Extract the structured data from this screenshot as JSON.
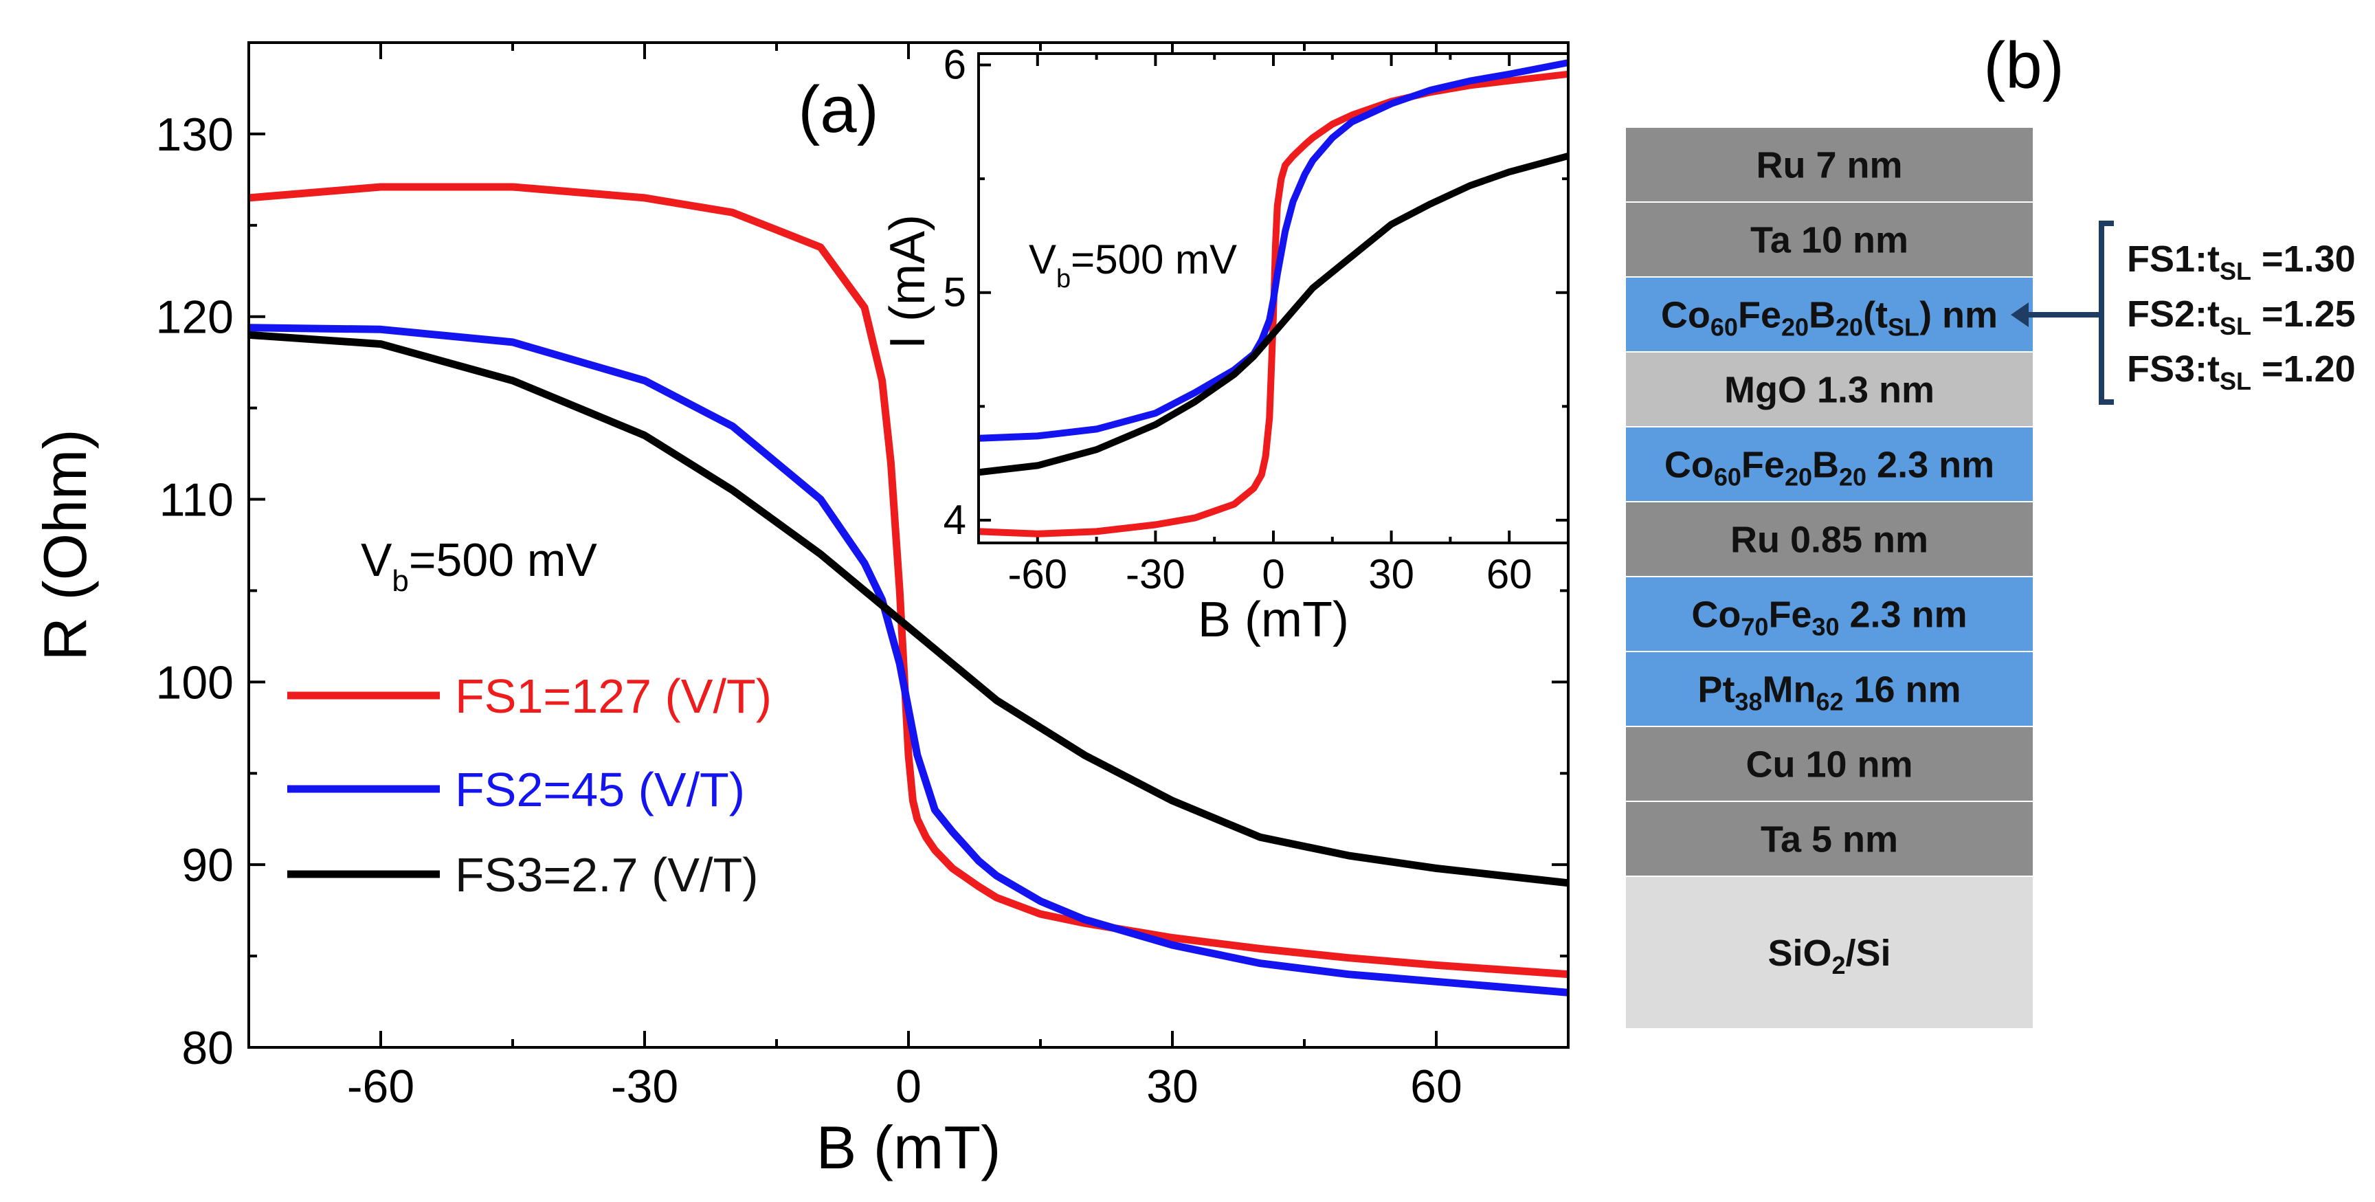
{
  "chart_data": [
    {
      "id": "a",
      "type": "line",
      "panel_label": "(a)",
      "xlabel": "B (mT)",
      "ylabel": "R (Ohm)",
      "xlim": [
        -75,
        75
      ],
      "ylim": [
        80,
        135
      ],
      "xticks": [
        -60,
        -30,
        0,
        30,
        60
      ],
      "yticks": [
        80,
        90,
        100,
        110,
        120,
        130
      ],
      "annotation": {
        "main": "V",
        "sub": "b",
        "rest": "=500 mV"
      },
      "legend_position": "lower-left",
      "series": [
        {
          "name": "FS1=127 (V/T)",
          "color": "#ee1c1c",
          "x": [
            -75,
            -60,
            -45,
            -30,
            -20,
            -10,
            -5,
            -3,
            -2,
            -1,
            0,
            0.5,
            1,
            2,
            3,
            5,
            8,
            10,
            15,
            20,
            30,
            40,
            50,
            60,
            75
          ],
          "y": [
            126.5,
            127.1,
            127.1,
            126.5,
            125.7,
            123.8,
            120.5,
            116.5,
            112,
            105,
            96,
            93.5,
            92.5,
            91.5,
            90.8,
            89.8,
            88.8,
            88.2,
            87.3,
            86.8,
            86,
            85.4,
            84.9,
            84.5,
            84
          ]
        },
        {
          "name": "FS2=45 (V/T)",
          "color": "#1414f0",
          "x": [
            -75,
            -60,
            -45,
            -30,
            -20,
            -10,
            -5,
            -3,
            -1,
            0,
            1,
            3,
            5,
            8,
            10,
            15,
            20,
            30,
            40,
            50,
            60,
            75
          ],
          "y": [
            119.4,
            119.3,
            118.6,
            116.5,
            114,
            110,
            106.5,
            104.5,
            101,
            98.5,
            96,
            93,
            91.8,
            90.2,
            89.4,
            88,
            87,
            85.6,
            84.6,
            84,
            83.6,
            83
          ]
        },
        {
          "name": "FS3=2.7 (V/T)",
          "color": "#000000",
          "x": [
            -75,
            -60,
            -45,
            -30,
            -20,
            -10,
            -5,
            0,
            5,
            10,
            20,
            30,
            40,
            50,
            60,
            75
          ],
          "y": [
            119,
            118.5,
            116.5,
            113.5,
            110.5,
            107,
            105,
            103,
            101,
            99,
            96,
            93.5,
            91.5,
            90.5,
            89.8,
            89
          ]
        }
      ]
    },
    {
      "id": "a-inset",
      "type": "line",
      "xlabel": "B (mT)",
      "ylabel": "I (mA)",
      "xlim": [
        -75,
        75
      ],
      "ylim": [
        3.9,
        6.05
      ],
      "xticks": [
        -60,
        -30,
        0,
        30,
        60
      ],
      "yticks": [
        4,
        5,
        6
      ],
      "annotation": {
        "main": "V",
        "sub": "b",
        "rest": "=500 mV"
      },
      "series": [
        {
          "name": "FS1",
          "color": "#ee1c1c",
          "x": [
            -75,
            -60,
            -45,
            -30,
            -20,
            -10,
            -5,
            -3,
            -2,
            -1,
            0,
            0.5,
            1,
            2,
            3,
            5,
            8,
            10,
            15,
            20,
            30,
            40,
            50,
            60,
            75
          ],
          "y": [
            3.95,
            3.94,
            3.95,
            3.98,
            4.01,
            4.07,
            4.14,
            4.2,
            4.28,
            4.45,
            4.9,
            5.2,
            5.38,
            5.5,
            5.56,
            5.6,
            5.65,
            5.68,
            5.74,
            5.78,
            5.84,
            5.88,
            5.91,
            5.93,
            5.96
          ]
        },
        {
          "name": "FS2",
          "color": "#1414f0",
          "x": [
            -75,
            -60,
            -45,
            -30,
            -20,
            -10,
            -5,
            -3,
            -1,
            0,
            1,
            3,
            5,
            8,
            10,
            15,
            20,
            30,
            40,
            50,
            60,
            75
          ],
          "y": [
            4.36,
            4.37,
            4.4,
            4.47,
            4.56,
            4.66,
            4.73,
            4.79,
            4.88,
            4.97,
            5.08,
            5.27,
            5.4,
            5.52,
            5.58,
            5.68,
            5.75,
            5.83,
            5.89,
            5.93,
            5.96,
            6.01
          ]
        },
        {
          "name": "FS3",
          "color": "#000000",
          "x": [
            -75,
            -60,
            -45,
            -30,
            -20,
            -10,
            -5,
            0,
            5,
            10,
            20,
            30,
            40,
            50,
            60,
            75
          ],
          "y": [
            4.21,
            4.24,
            4.31,
            4.42,
            4.52,
            4.64,
            4.72,
            4.82,
            4.92,
            5.02,
            5.16,
            5.3,
            5.39,
            5.47,
            5.53,
            5.6
          ]
        }
      ]
    }
  ],
  "stack": {
    "panel_label": "(b)",
    "layers": [
      {
        "label": [
          [
            "Ru 7 nm"
          ]
        ],
        "color": "#8c8c8c"
      },
      {
        "label": [
          [
            "Ta 10 nm"
          ]
        ],
        "color": "#8c8c8c"
      },
      {
        "label": [
          [
            "Co"
          ],
          [
            "60",
            "sub"
          ],
          [
            "Fe"
          ],
          [
            "20",
            "sub"
          ],
          [
            "B"
          ],
          [
            "20",
            "sub"
          ],
          [
            "(t"
          ],
          [
            "SL",
            "sub"
          ],
          [
            ") nm"
          ]
        ],
        "color": "#5b9bdf"
      },
      {
        "label": [
          [
            "MgO 1.3 nm"
          ]
        ],
        "color": "#bfbfbf"
      },
      {
        "label": [
          [
            "Co"
          ],
          [
            "60",
            "sub"
          ],
          [
            "Fe"
          ],
          [
            "20",
            "sub"
          ],
          [
            "B"
          ],
          [
            "20",
            "sub"
          ],
          [
            " 2.3 nm"
          ]
        ],
        "color": "#5b9bdf"
      },
      {
        "label": [
          [
            "Ru 0.85 nm"
          ]
        ],
        "color": "#8c8c8c"
      },
      {
        "label": [
          [
            "Co"
          ],
          [
            "70",
            "sub"
          ],
          [
            "Fe"
          ],
          [
            "30",
            "sub"
          ],
          [
            " 2.3 nm"
          ]
        ],
        "color": "#5b9bdf"
      },
      {
        "label": [
          [
            "Pt"
          ],
          [
            "38",
            "sub"
          ],
          [
            "Mn"
          ],
          [
            "62",
            "sub"
          ],
          [
            " 16 nm"
          ]
        ],
        "color": "#5b9bdf"
      },
      {
        "label": [
          [
            "Cu 10 nm"
          ]
        ],
        "color": "#8c8c8c"
      },
      {
        "label": [
          [
            "Ta 5 nm"
          ]
        ],
        "color": "#8c8c8c"
      },
      {
        "label": [
          [
            "SiO"
          ],
          [
            "2",
            "sub"
          ],
          [
            "/Si"
          ]
        ],
        "color": "#dcdcdc"
      }
    ],
    "notes": [
      [
        [
          "FS1:t"
        ],
        [
          "SL",
          "sub"
        ],
        [
          " =1.30"
        ]
      ],
      [
        [
          "FS2:t"
        ],
        [
          "SL",
          "sub"
        ],
        [
          " =1.25"
        ]
      ],
      [
        [
          "FS3:t"
        ],
        [
          "SL",
          "sub"
        ],
        [
          " =1.20"
        ]
      ]
    ],
    "bracket_color": "#1f3d63"
  }
}
